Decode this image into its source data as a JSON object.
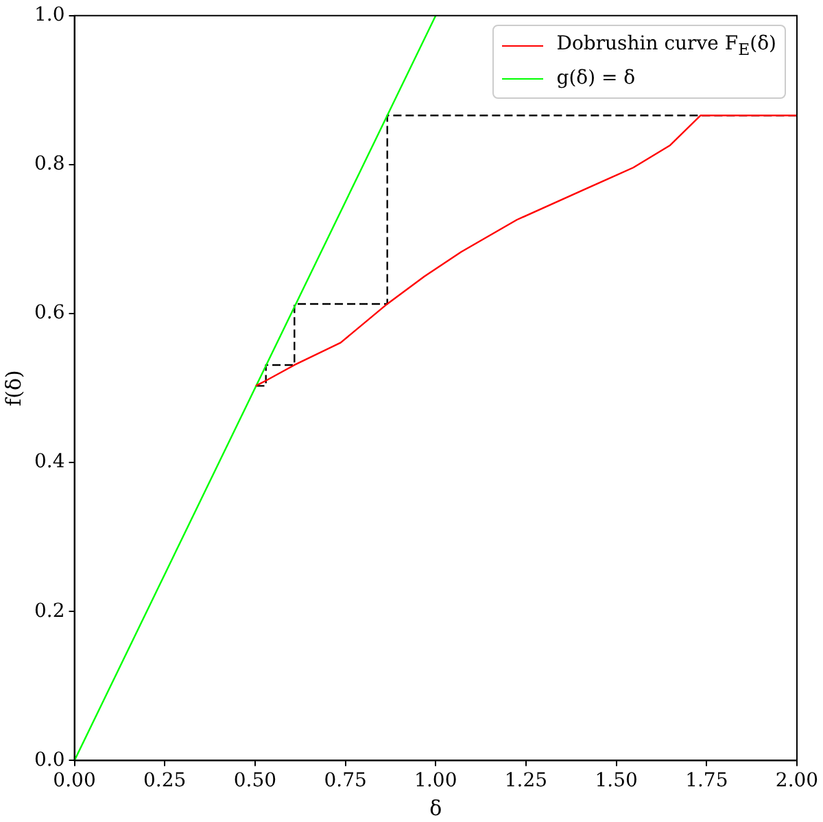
{
  "chart_data": {
    "type": "line",
    "xlabel": "δ",
    "ylabel": "f(δ)",
    "xlim": [
      0,
      2
    ],
    "ylim": [
      0,
      1
    ],
    "xticks": [
      {
        "value": 0,
        "label": "0.00"
      },
      {
        "value": 0.25,
        "label": "0.25"
      },
      {
        "value": 0.5,
        "label": "0.50"
      },
      {
        "value": 0.75,
        "label": "0.75"
      },
      {
        "value": 1,
        "label": "1.00"
      },
      {
        "value": 1.25,
        "label": "1.25"
      },
      {
        "value": 1.5,
        "label": "1.50"
      },
      {
        "value": 1.75,
        "label": "1.75"
      },
      {
        "value": 2,
        "label": "2.00"
      }
    ],
    "yticks": [
      {
        "value": 0,
        "label": "0.0"
      },
      {
        "value": 0.2,
        "label": "0.2"
      },
      {
        "value": 0.4,
        "label": "0.4"
      },
      {
        "value": 0.6,
        "label": "0.6"
      },
      {
        "value": 0.8,
        "label": "0.8"
      },
      {
        "value": 1,
        "label": "1.0"
      }
    ],
    "grid": false,
    "legend": "top right",
    "marker": "none",
    "series": [
      {
        "name": "Dobrushin curve F$_{E}$(δ)",
        "color": "#ff0000",
        "line_style": "solid",
        "x": [
          0.502,
          0.53,
          0.609,
          0.737,
          0.866,
          0.969,
          1.071,
          1.225,
          1.418,
          1.547,
          1.649,
          1.733,
          2.0
        ],
        "values": [
          0.503,
          0.51,
          0.531,
          0.561,
          0.613,
          0.65,
          0.683,
          0.726,
          0.768,
          0.796,
          0.826,
          0.866,
          0.866
        ]
      },
      {
        "name": "g(δ) = δ",
        "color": "#00ff00",
        "line_style": "solid",
        "x": [
          0,
          1
        ],
        "values": [
          0,
          1
        ]
      },
      {
        "color": "#000000",
        "line_style": "dashed",
        "x": [
          0.503,
          0.53,
          0.53,
          0.609,
          0.609,
          0.866,
          0.866,
          2.0
        ],
        "values": [
          0.503,
          0.503,
          0.531,
          0.531,
          0.613,
          0.613,
          0.866,
          0.866
        ]
      }
    ]
  }
}
